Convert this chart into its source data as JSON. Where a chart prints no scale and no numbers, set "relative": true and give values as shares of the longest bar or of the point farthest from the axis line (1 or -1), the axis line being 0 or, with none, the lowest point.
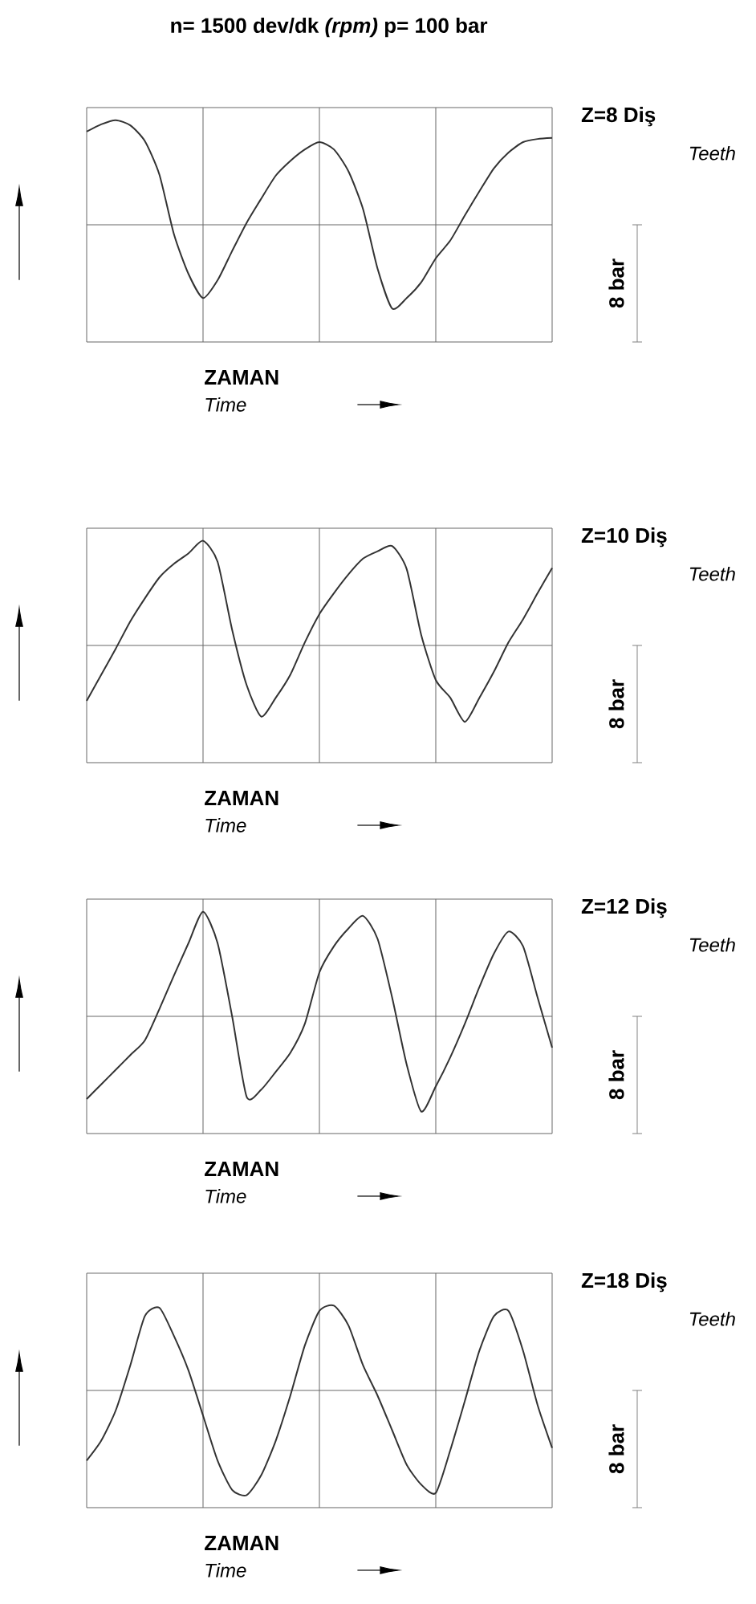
{
  "chart_data": [
    {
      "type": "line",
      "relative": true,
      "grid": true,
      "xlabel": "ZAMAN",
      "annotations": [
        "Z=8 Diş",
        "Teeth",
        "Time",
        "8 bar",
        "n= 1500 dev/dk *(rpm)* p= 100 bar"
      ],
      "categories": [
        null,
        null,
        null,
        null,
        null,
        null,
        null,
        null,
        null,
        null,
        null,
        null,
        null,
        null,
        null,
        null,
        null,
        null,
        null,
        null,
        null,
        null,
        null,
        null,
        null,
        null,
        null,
        null,
        null,
        null,
        null,
        null,
        null
      ],
      "series": [
        {
          "color": "#333333",
          "values": [
            0.89,
            0.96,
            1.0,
            0.95,
            0.8,
            0.48,
            -0.09,
            -0.47,
            -0.7,
            -0.53,
            -0.25,
            0.02,
            0.25,
            0.47,
            0.61,
            0.72,
            0.79,
            0.72,
            0.51,
            0.15,
            -0.42,
            -0.8,
            -0.7,
            -0.55,
            -0.32,
            -0.15,
            0.09,
            0.32,
            0.54,
            0.69,
            0.79,
            0.82,
            0.83
          ]
        }
      ]
    },
    {
      "type": "line",
      "relative": true,
      "grid": true,
      "xlabel": "ZAMAN",
      "annotations": [
        "Z=10 Diş",
        "Teeth",
        "Time",
        "8 bar"
      ],
      "categories": [
        null,
        null,
        null,
        null,
        null,
        null,
        null,
        null,
        null,
        null,
        null,
        null,
        null,
        null,
        null,
        null,
        null,
        null,
        null,
        null,
        null,
        null,
        null,
        null,
        null,
        null,
        null,
        null,
        null,
        null,
        null,
        null,
        null
      ],
      "series": [
        {
          "color": "#333333",
          "values": [
            -0.53,
            -0.28,
            -0.03,
            0.23,
            0.45,
            0.65,
            0.78,
            0.88,
            1.0,
            0.8,
            0.15,
            -0.38,
            -0.68,
            -0.5,
            -0.28,
            0.03,
            0.3,
            0.5,
            0.68,
            0.83,
            0.9,
            0.95,
            0.73,
            0.1,
            -0.33,
            -0.5,
            -0.73,
            -0.5,
            -0.25,
            0.03,
            0.25,
            0.5,
            0.74
          ]
        }
      ]
    },
    {
      "type": "line",
      "relative": true,
      "grid": true,
      "xlabel": "ZAMAN",
      "annotations": [
        "Z=12 Diş",
        "Teeth",
        "Time",
        "8 bar"
      ],
      "categories": [
        null,
        null,
        null,
        null,
        null,
        null,
        null,
        null,
        null,
        null,
        null,
        null,
        null,
        null,
        null,
        null,
        null,
        null,
        null,
        null,
        null,
        null,
        null,
        null,
        null,
        null,
        null,
        null,
        null,
        null,
        null,
        null,
        null
      ],
      "series": [
        {
          "color": "#333333",
          "values": [
            -0.79,
            -0.65,
            -0.51,
            -0.37,
            -0.23,
            0.07,
            0.39,
            0.7,
            1.0,
            0.7,
            0.0,
            -0.77,
            -0.7,
            -0.53,
            -0.35,
            -0.07,
            0.42,
            0.67,
            0.84,
            0.96,
            0.74,
            0.18,
            -0.46,
            -0.91,
            -0.67,
            -0.39,
            -0.07,
            0.28,
            0.6,
            0.81,
            0.67,
            0.18,
            -0.3
          ]
        }
      ]
    },
    {
      "type": "line",
      "relative": true,
      "grid": true,
      "xlabel": "ZAMAN",
      "annotations": [
        "Z=18 Diş",
        "Teeth",
        "Time",
        "8 bar"
      ],
      "categories": [
        null,
        null,
        null,
        null,
        null,
        null,
        null,
        null,
        null,
        null,
        null,
        null,
        null,
        null,
        null,
        null,
        null,
        null,
        null,
        null,
        null,
        null,
        null,
        null,
        null,
        null,
        null,
        null,
        null,
        null,
        null,
        null,
        null
      ],
      "series": [
        {
          "color": "#333333",
          "values": [
            -0.67,
            -0.48,
            -0.19,
            0.24,
            0.71,
            0.79,
            0.52,
            0.19,
            -0.24,
            -0.67,
            -0.95,
            -1.0,
            -0.81,
            -0.48,
            -0.05,
            0.43,
            0.76,
            0.81,
            0.62,
            0.24,
            -0.05,
            -0.38,
            -0.71,
            -0.9,
            -0.98,
            -0.57,
            -0.1,
            0.38,
            0.71,
            0.76,
            0.38,
            -0.14,
            -0.55
          ]
        }
      ]
    }
  ]
}
